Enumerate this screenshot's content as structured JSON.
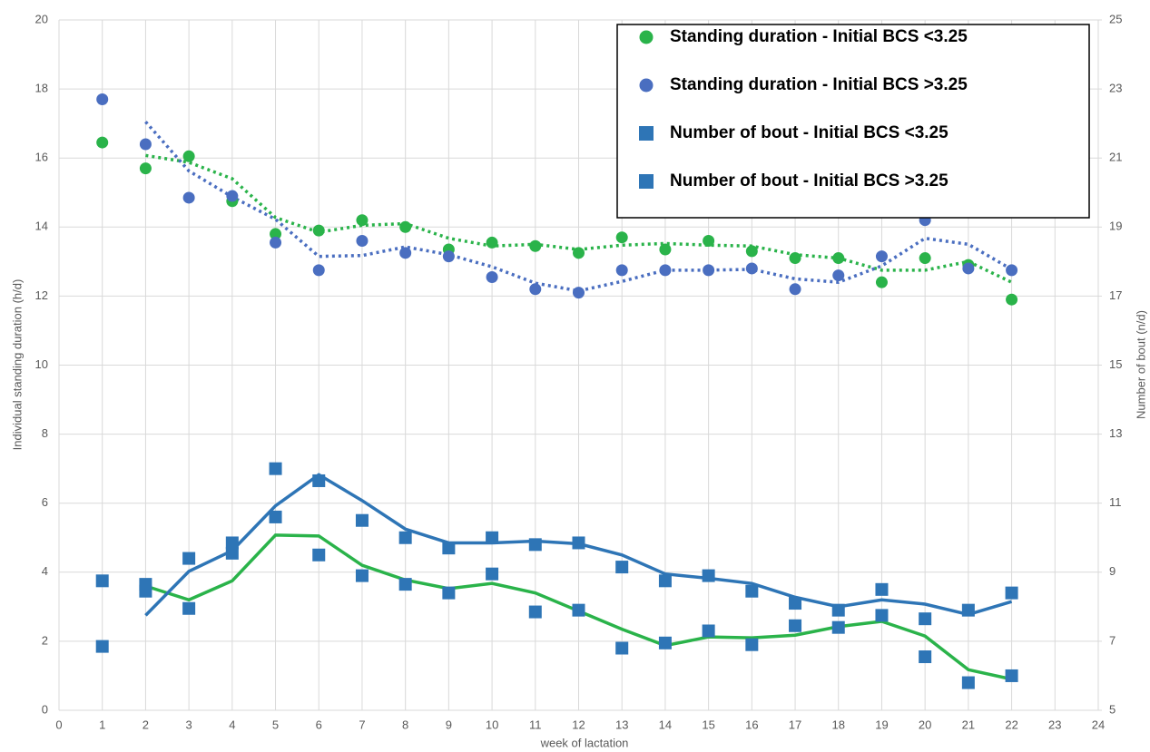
{
  "chart_data": {
    "type": "scatter",
    "x_label": "week of lactation",
    "y_label": "Individual standing duration (h/d)",
    "y2_label": "Number of bout (n/d)",
    "x": [
      1,
      2,
      3,
      4,
      5,
      6,
      7,
      8,
      9,
      10,
      11,
      12,
      13,
      14,
      15,
      16,
      17,
      18,
      19,
      20,
      21,
      22
    ],
    "xlim": [
      0,
      24
    ],
    "xticks": [
      0,
      1,
      2,
      3,
      4,
      5,
      6,
      7,
      8,
      9,
      10,
      11,
      12,
      13,
      14,
      15,
      16,
      17,
      18,
      19,
      20,
      21,
      22,
      23,
      24
    ],
    "ylim": [
      0,
      20
    ],
    "yticks": [
      0,
      2,
      4,
      6,
      8,
      10,
      12,
      14,
      16,
      18,
      20
    ],
    "y2lim": [
      5,
      25
    ],
    "y2ticks": [
      5,
      7,
      9,
      11,
      13,
      15,
      17,
      19,
      21,
      23,
      25
    ],
    "grid": true,
    "legend": "upper right",
    "trend_period": 2,
    "series": [
      {
        "name": "Standing duration - Initial BCS <3.25",
        "color": "#2ab34a",
        "marker": "circle",
        "trendline": "dotted",
        "values": [
          16.45,
          15.7,
          16.05,
          14.75,
          13.8,
          13.9,
          14.2,
          14.0,
          13.35,
          13.55,
          13.45,
          13.25,
          13.7,
          13.35,
          13.6,
          13.3,
          13.1,
          13.1,
          12.4,
          13.1,
          12.9,
          11.9
        ]
      },
      {
        "name": "Standing duration - Initial BCS >3.25",
        "color": "#4a6ec0",
        "marker": "circle",
        "trendline": "dotted",
        "values": [
          17.7,
          16.4,
          14.85,
          14.9,
          13.55,
          12.75,
          13.6,
          13.25,
          13.15,
          12.55,
          12.2,
          12.1,
          12.75,
          12.75,
          12.75,
          12.8,
          12.2,
          12.6,
          13.15,
          14.2,
          12.8,
          12.75
        ]
      },
      {
        "name": "Number of bout - Initial BCS <3.25",
        "color": "#2e75b6",
        "marker": "square",
        "axis": "y2",
        "trendline": "solid",
        "trend_color": "#2ab34a",
        "values": [
          8.75,
          8.45,
          7.95,
          9.55,
          10.6,
          9.5,
          8.9,
          8.65,
          8.4,
          8.95,
          7.85,
          7.9,
          6.8,
          6.95,
          7.3,
          6.9,
          7.45,
          7.4,
          7.75,
          6.55,
          5.8,
          6.0
        ]
      },
      {
        "name": "Number of bout - Initial BCS >3.25",
        "color": "#2e75b6",
        "marker": "square",
        "axis": "y2",
        "trendline": "solid",
        "trend_color": "#2e75b6",
        "values": [
          6.85,
          8.65,
          9.4,
          9.85,
          12.0,
          11.65,
          10.5,
          10.0,
          9.7,
          10.0,
          9.8,
          9.85,
          9.15,
          8.75,
          8.9,
          8.45,
          8.1,
          7.9,
          8.5,
          7.65,
          7.9,
          8.4
        ]
      }
    ]
  }
}
